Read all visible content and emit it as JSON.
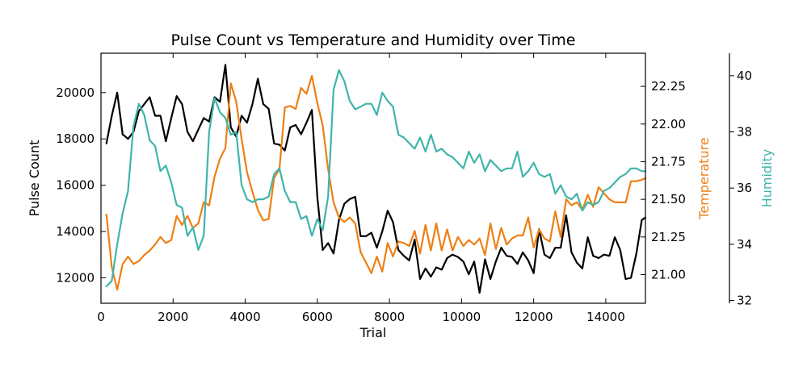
{
  "chart_data": {
    "type": "line",
    "title": "Pulse Count vs Temperature and Humidity over Time",
    "xlabel": "Trial",
    "xlim": [
      0,
      15100
    ],
    "xticks": [
      0,
      2000,
      4000,
      6000,
      8000,
      10000,
      12000,
      14000
    ],
    "axes": [
      {
        "id": "left",
        "label": "Pulse Count",
        "color": "#000000",
        "ylim": [
          10900,
          21700
        ],
        "ticks": [
          12000,
          14000,
          16000,
          18000,
          20000
        ]
      },
      {
        "id": "right1",
        "label": "Temperature",
        "color": "#ee7f14",
        "ylim": [
          20.81,
          22.47
        ],
        "ticks": [
          21.0,
          21.25,
          21.5,
          21.75,
          22.0,
          22.25
        ],
        "tick_labels": [
          "21.00",
          "21.25",
          "21.50",
          "21.75",
          "22.00",
          "22.25"
        ]
      },
      {
        "id": "right2",
        "label": "Humidity",
        "color": "#3fb5aa",
        "ylim": [
          31.9,
          40.8
        ],
        "ticks": [
          32,
          34,
          36,
          38,
          40
        ]
      }
    ],
    "series": [
      {
        "name": "Pulse Count",
        "axis": "left",
        "color": "#000000",
        "x": [
          150,
          300,
          450,
          600,
          750,
          900,
          1050,
          1200,
          1350,
          1500,
          1650,
          1800,
          1950,
          2100,
          2250,
          2400,
          2550,
          2700,
          2850,
          3000,
          3150,
          3300,
          3450,
          3600,
          3750,
          3900,
          4050,
          4200,
          4350,
          4500,
          4650,
          4800,
          4950,
          5100,
          5250,
          5400,
          5550,
          5700,
          5850,
          6000,
          6150,
          6300,
          6450,
          6600,
          6750,
          6900,
          7050,
          7200,
          7350,
          7500,
          7650,
          7800,
          7950,
          8100,
          8250,
          8400,
          8550,
          8700,
          8850,
          9000,
          9150,
          9300,
          9450,
          9600,
          9750,
          9900,
          10050,
          10200,
          10350,
          10500,
          10650,
          10800,
          10950,
          11100,
          11250,
          11400,
          11550,
          11700,
          11850,
          12000,
          12150,
          12300,
          12450,
          12600,
          12750,
          12900,
          13050,
          13200,
          13350,
          13500,
          13650,
          13800,
          13950,
          14100,
          14250,
          14400,
          14550,
          14700,
          14850,
          15000,
          15100
        ],
        "values": [
          17800,
          19000,
          20000,
          18200,
          18000,
          18300,
          19200,
          19500,
          19800,
          19000,
          19000,
          17900,
          18900,
          19850,
          19500,
          18300,
          17900,
          18400,
          18900,
          18750,
          19800,
          19600,
          21200,
          18500,
          18100,
          19000,
          18700,
          19500,
          20600,
          19500,
          19300,
          17800,
          17750,
          17500,
          18500,
          18600,
          18200,
          18700,
          19250,
          15500,
          13200,
          13500,
          13050,
          14500,
          15200,
          15400,
          15500,
          13800,
          13800,
          13950,
          13300,
          14000,
          14900,
          14400,
          13200,
          12950,
          12750,
          13650,
          11950,
          12400,
          12050,
          12450,
          12350,
          12850,
          13000,
          12900,
          12700,
          12150,
          12700,
          11350,
          12800,
          11950,
          12700,
          13300,
          12950,
          12900,
          12600,
          13100,
          12750,
          12200,
          14100,
          13000,
          12850,
          13300,
          13300,
          14700,
          13100,
          12650,
          12400,
          13750,
          12950,
          12850,
          13000,
          12950,
          13750,
          13200,
          11950,
          12000,
          13050,
          14500,
          14600
        ]
      },
      {
        "name": "Temperature",
        "axis": "right1",
        "color": "#ee7f14",
        "x": [
          150,
          300,
          450,
          600,
          750,
          900,
          1050,
          1200,
          1350,
          1500,
          1650,
          1800,
          1950,
          2100,
          2250,
          2400,
          2550,
          2700,
          2850,
          3000,
          3150,
          3300,
          3450,
          3600,
          3750,
          3900,
          4050,
          4200,
          4350,
          4500,
          4650,
          4800,
          4950,
          5100,
          5250,
          5400,
          5550,
          5700,
          5850,
          6000,
          6150,
          6300,
          6450,
          6600,
          6750,
          6900,
          7050,
          7200,
          7350,
          7500,
          7650,
          7800,
          7950,
          8100,
          8250,
          8400,
          8550,
          8700,
          8850,
          9000,
          9150,
          9300,
          9450,
          9600,
          9750,
          9900,
          10050,
          10200,
          10350,
          10500,
          10650,
          10800,
          10950,
          11100,
          11250,
          11400,
          11550,
          11700,
          11850,
          12000,
          12150,
          12300,
          12450,
          12600,
          12750,
          12900,
          13050,
          13200,
          13350,
          13500,
          13650,
          13800,
          13950,
          14100,
          14250,
          14400,
          14550,
          14700,
          14850,
          15000,
          15100
        ],
        "values": [
          21.4,
          21.05,
          20.9,
          21.07,
          21.12,
          21.07,
          21.09,
          21.13,
          21.16,
          21.2,
          21.25,
          21.21,
          21.23,
          21.39,
          21.33,
          21.39,
          21.31,
          21.34,
          21.48,
          21.46,
          21.65,
          21.77,
          21.84,
          22.27,
          22.15,
          21.9,
          21.68,
          21.55,
          21.43,
          21.36,
          21.37,
          21.64,
          21.7,
          22.11,
          22.12,
          22.1,
          22.24,
          22.2,
          22.32,
          22.14,
          21.99,
          21.7,
          21.48,
          21.38,
          21.35,
          21.38,
          21.34,
          21.15,
          21.08,
          21.01,
          21.12,
          21.02,
          21.21,
          21.12,
          21.22,
          21.21,
          21.19,
          21.29,
          21.14,
          21.33,
          21.16,
          21.34,
          21.16,
          21.3,
          21.16,
          21.25,
          21.19,
          21.23,
          21.2,
          21.24,
          21.13,
          21.34,
          21.17,
          21.31,
          21.2,
          21.24,
          21.26,
          21.26,
          21.38,
          21.18,
          21.3,
          21.24,
          21.22,
          21.42,
          21.25,
          21.5,
          21.46,
          21.48,
          21.43,
          21.53,
          21.45,
          21.58,
          21.54,
          21.5,
          21.48,
          21.48,
          21.48,
          21.62,
          21.62,
          21.63,
          21.64
        ]
      },
      {
        "name": "Humidity",
        "axis": "right2",
        "color": "#3fb5aa",
        "x": [
          150,
          300,
          450,
          600,
          750,
          900,
          1050,
          1200,
          1350,
          1500,
          1650,
          1800,
          1950,
          2100,
          2250,
          2400,
          2550,
          2700,
          2850,
          3000,
          3150,
          3300,
          3450,
          3600,
          3750,
          3900,
          4050,
          4200,
          4350,
          4500,
          4650,
          4800,
          4950,
          5100,
          5250,
          5400,
          5550,
          5700,
          5850,
          6000,
          6150,
          6300,
          6450,
          6600,
          6750,
          6900,
          7050,
          7200,
          7350,
          7500,
          7650,
          7800,
          7950,
          8100,
          8250,
          8400,
          8550,
          8700,
          8850,
          9000,
          9150,
          9300,
          9450,
          9600,
          9750,
          9900,
          10050,
          10200,
          10350,
          10500,
          10650,
          10800,
          10950,
          11100,
          11250,
          11400,
          11550,
          11700,
          11850,
          12000,
          12150,
          12300,
          12450,
          12600,
          12750,
          12900,
          13050,
          13200,
          13350,
          13500,
          13650,
          13800,
          13950,
          14100,
          14250,
          14400,
          14550,
          14700,
          14850,
          15000,
          15100
        ],
        "values": [
          32.5,
          32.7,
          34.0,
          35.1,
          35.9,
          38.2,
          39.0,
          38.6,
          37.7,
          37.5,
          36.6,
          36.8,
          36.2,
          35.4,
          35.3,
          34.3,
          34.6,
          33.8,
          34.3,
          38.0,
          39.2,
          38.7,
          38.5,
          37.9,
          38.0,
          36.1,
          35.6,
          35.5,
          35.6,
          35.6,
          35.7,
          36.5,
          36.7,
          35.9,
          35.5,
          35.5,
          34.9,
          35.0,
          34.3,
          34.9,
          34.5,
          35.7,
          39.5,
          40.2,
          39.8,
          39.1,
          38.8,
          38.9,
          39.0,
          39.0,
          38.6,
          39.4,
          39.1,
          38.9,
          37.9,
          37.8,
          37.6,
          37.4,
          37.8,
          37.3,
          37.9,
          37.3,
          37.4,
          37.2,
          37.1,
          36.9,
          36.7,
          37.3,
          36.9,
          37.2,
          36.6,
          37.0,
          36.8,
          36.6,
          36.7,
          36.7,
          37.3,
          36.4,
          36.6,
          36.9,
          36.5,
          36.4,
          36.5,
          35.8,
          36.1,
          35.7,
          35.6,
          35.8,
          35.2,
          35.5,
          35.4,
          35.5,
          35.9,
          36.0,
          36.2,
          36.4,
          36.5,
          36.7,
          36.7,
          36.6,
          36.6
        ]
      }
    ]
  }
}
